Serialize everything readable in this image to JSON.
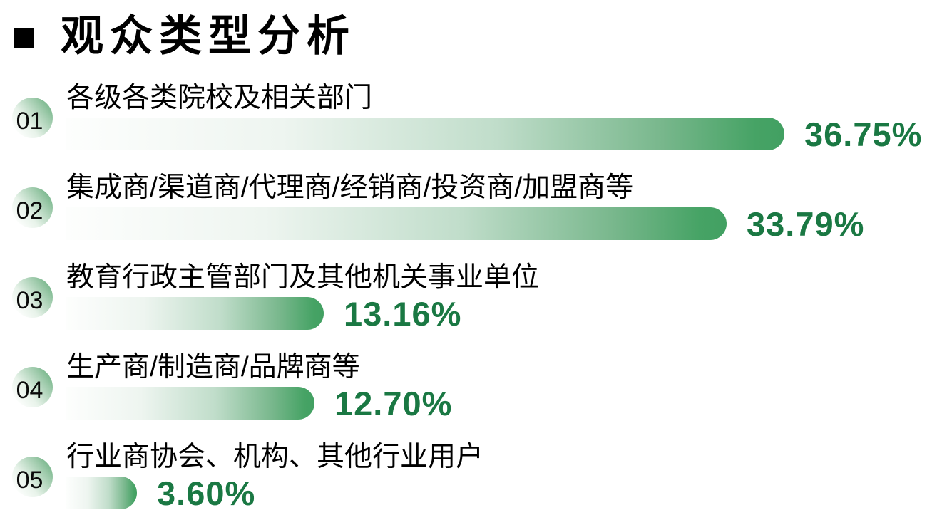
{
  "title": {
    "text": "观众类型分析"
  },
  "rows": [
    {
      "rank": "01",
      "label": "各级各类院校及相关部门",
      "pct": "36.75%"
    },
    {
      "rank": "02",
      "label": "集成商/渠道商/代理商/经销商/投资商/加盟商等",
      "pct": "33.79%"
    },
    {
      "rank": "03",
      "label": "教育行政主管部门及其他机关事业单位",
      "pct": "13.16%"
    },
    {
      "rank": "04",
      "label": "生产商/制造商/品牌商等",
      "pct": "12.70%"
    },
    {
      "rank": "05",
      "label": "行业商协会、机构、其他行业用户",
      "pct": "3.60%"
    }
  ],
  "chart_data": {
    "type": "bar",
    "orientation": "horizontal",
    "title": "观众类型分析",
    "categories": [
      "各级各类院校及相关部门",
      "集成商/渠道商/代理商/经销商/投资商/加盟商等",
      "教育行政主管部门及其他机关事业单位",
      "生产商/制造商/品牌商等",
      "行业商协会、机构、其他行业用户"
    ],
    "values": [
      36.75,
      33.79,
      13.16,
      12.7,
      3.6
    ],
    "value_labels": [
      "36.75%",
      "33.79%",
      "13.16%",
      "12.70%",
      "3.60%"
    ],
    "rank_labels": [
      "01",
      "02",
      "03",
      "04",
      "05"
    ],
    "xlim": [
      0,
      40
    ],
    "grid": false,
    "legend": "none",
    "colors": {
      "bar_gradient_start": "#fdfefd",
      "bar_gradient_end": "#42a062",
      "value_text": "#1a7843",
      "badge_green": "#6fb284",
      "title_text": "#000000"
    }
  }
}
